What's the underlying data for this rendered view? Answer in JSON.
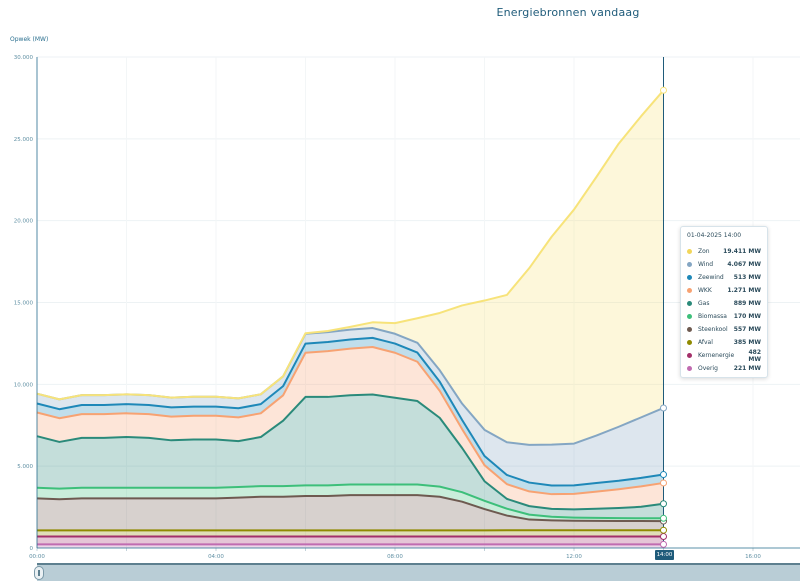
{
  "chart_data": {
    "type": "area",
    "stacked": true,
    "title": "Energiebronnen vandaag",
    "ylabel": "Opwek (MW)",
    "ylim": [
      0,
      30000
    ],
    "yticks": [
      "0",
      "5.000",
      "10.000",
      "15.000",
      "20.000",
      "25.000",
      "30.000"
    ],
    "xticks": [
      "00:00",
      "04:00",
      "08:00",
      "12:00",
      "14:00",
      "16:00"
    ],
    "x_hours": [
      0,
      0.5,
      1,
      1.5,
      2,
      2.5,
      3,
      3.5,
      4,
      4.5,
      5,
      5.5,
      6,
      6.5,
      7,
      7.5,
      8,
      8.5,
      9,
      9.5,
      10,
      10.5,
      11,
      11.5,
      12,
      12.5,
      13,
      13.5,
      14
    ],
    "grid": true,
    "series": [
      {
        "name": "Overig",
        "color": "#c06bb0",
        "values": [
          220,
          220,
          220,
          220,
          220,
          220,
          220,
          220,
          220,
          220,
          220,
          220,
          220,
          220,
          220,
          220,
          220,
          220,
          220,
          220,
          220,
          220,
          221,
          221,
          221,
          221,
          221,
          221,
          221
        ]
      },
      {
        "name": "Kernenergie",
        "color": "#a3306a",
        "values": [
          480,
          480,
          480,
          480,
          480,
          480,
          480,
          480,
          480,
          480,
          480,
          480,
          480,
          480,
          480,
          480,
          480,
          480,
          480,
          480,
          480,
          481,
          482,
          482,
          482,
          482,
          482,
          482,
          482
        ]
      },
      {
        "name": "Afval",
        "color": "#8f8a00",
        "values": [
          380,
          380,
          380,
          380,
          380,
          380,
          380,
          380,
          380,
          380,
          380,
          380,
          380,
          380,
          380,
          380,
          380,
          380,
          380,
          380,
          380,
          380,
          385,
          385,
          385,
          385,
          385,
          385,
          385
        ]
      },
      {
        "name": "Steenkool",
        "color": "#6e5a50",
        "values": [
          1950,
          1900,
          1950,
          1950,
          1950,
          1950,
          1950,
          1950,
          1950,
          2000,
          2050,
          2050,
          2100,
          2100,
          2150,
          2150,
          2150,
          2150,
          2050,
          1750,
          1300,
          900,
          650,
          600,
          580,
          570,
          560,
          560,
          557
        ]
      },
      {
        "name": "Biomassa",
        "color": "#3dbf7a",
        "values": [
          650,
          650,
          650,
          650,
          650,
          650,
          650,
          650,
          650,
          650,
          650,
          650,
          650,
          650,
          650,
          650,
          650,
          650,
          620,
          580,
          500,
          420,
          300,
          220,
          190,
          180,
          175,
          170,
          170
        ]
      },
      {
        "name": "Gas",
        "color": "#2a8a7a",
        "values": [
          3150,
          2850,
          3050,
          3050,
          3100,
          3050,
          2900,
          2950,
          2950,
          2800,
          3000,
          4000,
          5400,
          5400,
          5450,
          5500,
          5300,
          5100,
          4200,
          2700,
          1200,
          600,
          520,
          480,
          500,
          560,
          620,
          700,
          889
        ]
      },
      {
        "name": "WKK",
        "color": "#f7a272",
        "values": [
          1450,
          1450,
          1450,
          1450,
          1450,
          1450,
          1450,
          1450,
          1450,
          1450,
          1450,
          1550,
          2700,
          2800,
          2850,
          2900,
          2750,
          2400,
          1650,
          1150,
          980,
          900,
          900,
          900,
          950,
          1050,
          1150,
          1250,
          1271
        ]
      },
      {
        "name": "Zeewind",
        "color": "#1e88b8",
        "values": [
          550,
          550,
          560,
          560,
          560,
          560,
          560,
          560,
          560,
          560,
          560,
          560,
          560,
          560,
          560,
          560,
          560,
          560,
          560,
          560,
          560,
          560,
          540,
          530,
          520,
          520,
          515,
          514,
          513
        ]
      },
      {
        "name": "Wind",
        "color": "#84a6c3",
        "values": [
          600,
          600,
          600,
          600,
          600,
          600,
          600,
          600,
          600,
          600,
          600,
          600,
          600,
          600,
          600,
          600,
          600,
          600,
          700,
          1000,
          1600,
          2000,
          2300,
          2500,
          2550,
          2900,
          3300,
          3700,
          4067
        ]
      },
      {
        "name": "Zon",
        "color": "#f7e37a",
        "values": [
          0,
          0,
          0,
          0,
          0,
          0,
          0,
          0,
          0,
          0,
          0,
          0,
          30,
          70,
          170,
          350,
          650,
          1500,
          3500,
          6000,
          7900,
          9000,
          10800,
          12700,
          14300,
          15800,
          17300,
          18400,
          19411
        ]
      }
    ],
    "cursor": {
      "label": "14:00"
    }
  },
  "tooltip": {
    "header": "01-04-2025 14:00",
    "rows": [
      {
        "label": "Zon",
        "value": "19.411 MW",
        "color": "#f2d65a"
      },
      {
        "label": "Wind",
        "value": "4.067 MW",
        "color": "#84a6c3"
      },
      {
        "label": "Zeewind",
        "value": "513 MW",
        "color": "#1e88b8"
      },
      {
        "label": "WKK",
        "value": "1.271 MW",
        "color": "#f7a272"
      },
      {
        "label": "Gas",
        "value": "889 MW",
        "color": "#2a8a7a"
      },
      {
        "label": "Biomassa",
        "value": "170 MW",
        "color": "#3dbf7a"
      },
      {
        "label": "Steenkool",
        "value": "557 MW",
        "color": "#6e5a50"
      },
      {
        "label": "Afval",
        "value": "385 MW",
        "color": "#8f8a00"
      },
      {
        "label": "Kernenergie",
        "value": "482 MW",
        "color": "#a3306a"
      },
      {
        "label": "Overig",
        "value": "221 MW",
        "color": "#c06bb0"
      }
    ]
  }
}
